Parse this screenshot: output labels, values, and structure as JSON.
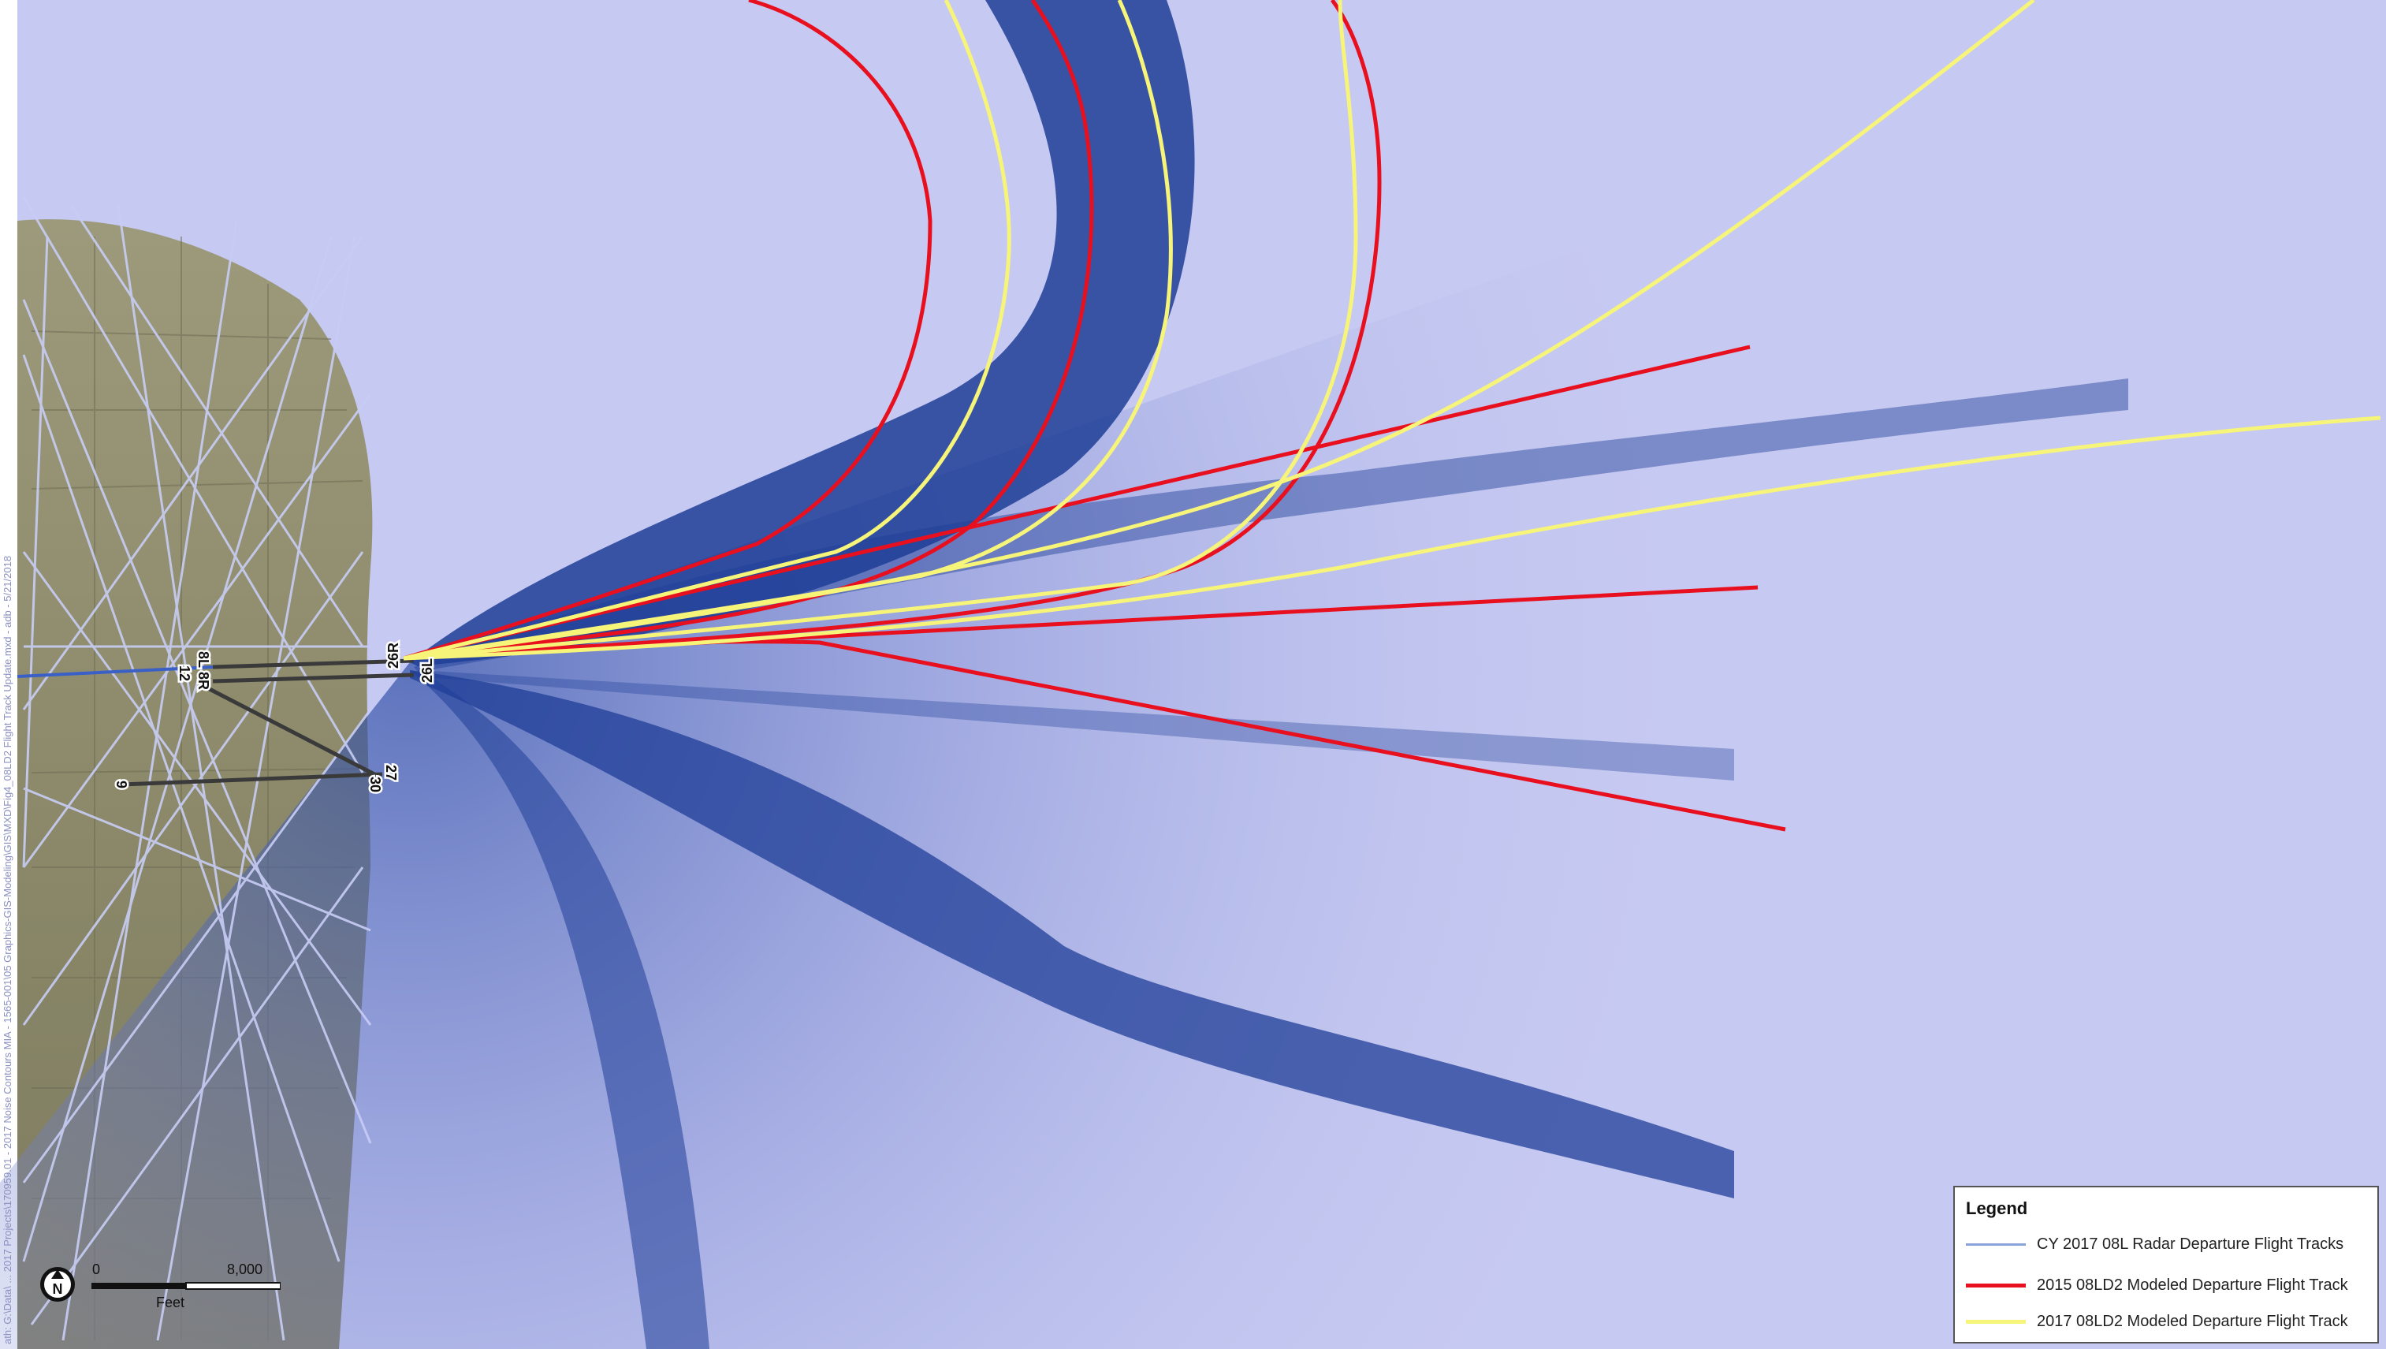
{
  "map": {
    "runway_labels": {
      "r26R": "26R",
      "r26L": "26L",
      "r8L": "8L",
      "r8R": "8R",
      "r12": "12",
      "r30": "30",
      "r27": "27",
      "r9": "9"
    },
    "side_text": "ath: G:\\Data\\ ... 2017 Projects\\170959.01 - 2017 Noise Contours MIA - 1565-001\\05 Graphics-GIS-Modeling\\GIS\\MXD\\Fig4_08LD2 Flight Track Update.mxd - adb - 5/21/2018",
    "colors": {
      "radar_tracks": "#7d8fd0",
      "modeled_2015": "#e8101f",
      "modeled_2017": "#f7f47a",
      "track_density_dark": "#1e3d96",
      "base_imagery": "#8f8b6e"
    }
  },
  "legend": {
    "title": "Legend",
    "items": [
      {
        "label": "CY 2017 08L Radar Departure Flight Tracks",
        "color": "#8aa3d8"
      },
      {
        "label": "2015 08LD2 Modeled Departure Flight Track",
        "color": "#e8101f"
      },
      {
        "label": "2017 08LD2 Modeled Departure Flight Track",
        "color": "#f7f47a"
      }
    ]
  },
  "scale": {
    "zero_label": "0",
    "max_label": "8,000",
    "units_label": "Feet",
    "north_label": "N"
  }
}
